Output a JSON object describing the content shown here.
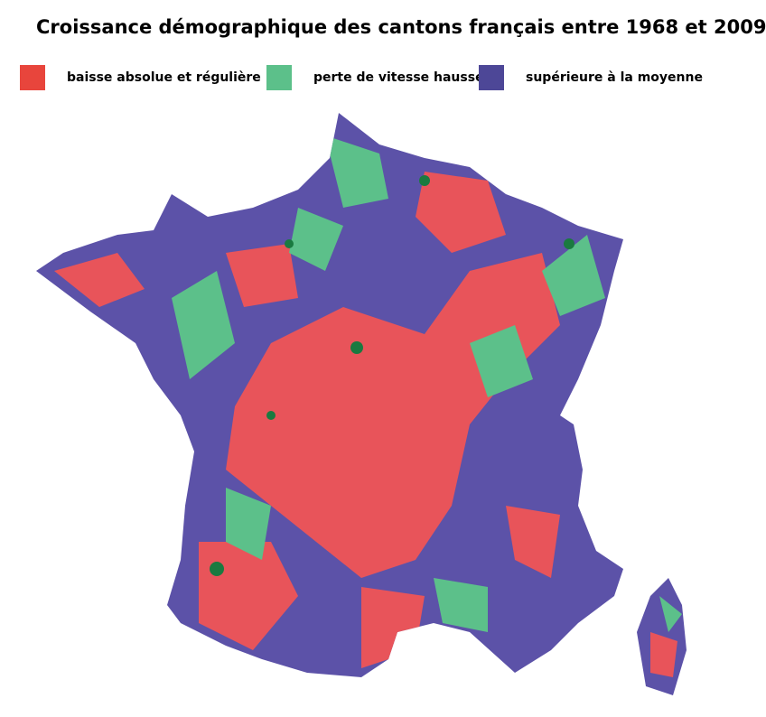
{
  "title": "Croissance démographique des cantons français entre 1968 et 2009",
  "legend": [
    {
      "label": "baisse absolue et régulière",
      "color": "#e8453c"
    },
    {
      "label": "perte de vitesse hausse",
      "color": "#5cc08a"
    },
    {
      "label": "supérieure à la moyenne",
      "color": "#4d4797"
    }
  ]
}
